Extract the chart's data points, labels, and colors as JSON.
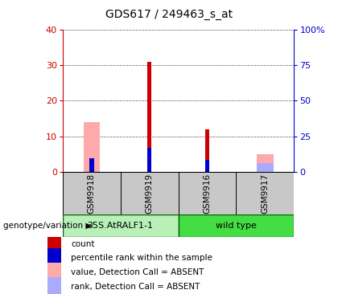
{
  "title": "GDS617 / 249463_s_at",
  "samples": [
    "GSM9918",
    "GSM9919",
    "GSM9916",
    "GSM9917"
  ],
  "groups": [
    "35S.AtRALF1-1",
    "35S.AtRALF1-1",
    "wild type",
    "wild type"
  ],
  "count_values": [
    0,
    31,
    12,
    0
  ],
  "percentile_values": [
    9.5,
    17,
    8.5,
    0
  ],
  "absent_value_values": [
    14,
    0,
    0,
    5
  ],
  "absent_rank_values": [
    0,
    0,
    0,
    6
  ],
  "ylim_left": [
    0,
    40
  ],
  "ylim_right": [
    0,
    100
  ],
  "yticks_left": [
    0,
    10,
    20,
    30,
    40
  ],
  "yticks_right": [
    0,
    25,
    50,
    75,
    100
  ],
  "ytick_labels_right": [
    "0",
    "25",
    "50",
    "75",
    "100%"
  ],
  "color_count": "#cc0000",
  "color_percentile": "#0000cc",
  "color_absent_value": "#ffaaaa",
  "color_absent_rank": "#aaaaff",
  "group1_label": "35S.AtRALF1-1",
  "group2_label": "wild type",
  "group1_color": "#b8f0b8",
  "group2_color": "#44dd44",
  "sample_bg_color": "#c8c8c8",
  "left_axis_color": "#cc0000",
  "right_axis_color": "#0000cc",
  "legend_items": [
    "count",
    "percentile rank within the sample",
    "value, Detection Call = ABSENT",
    "rank, Detection Call = ABSENT"
  ],
  "legend_colors": [
    "#cc0000",
    "#0000cc",
    "#ffaaaa",
    "#aaaaff"
  ]
}
